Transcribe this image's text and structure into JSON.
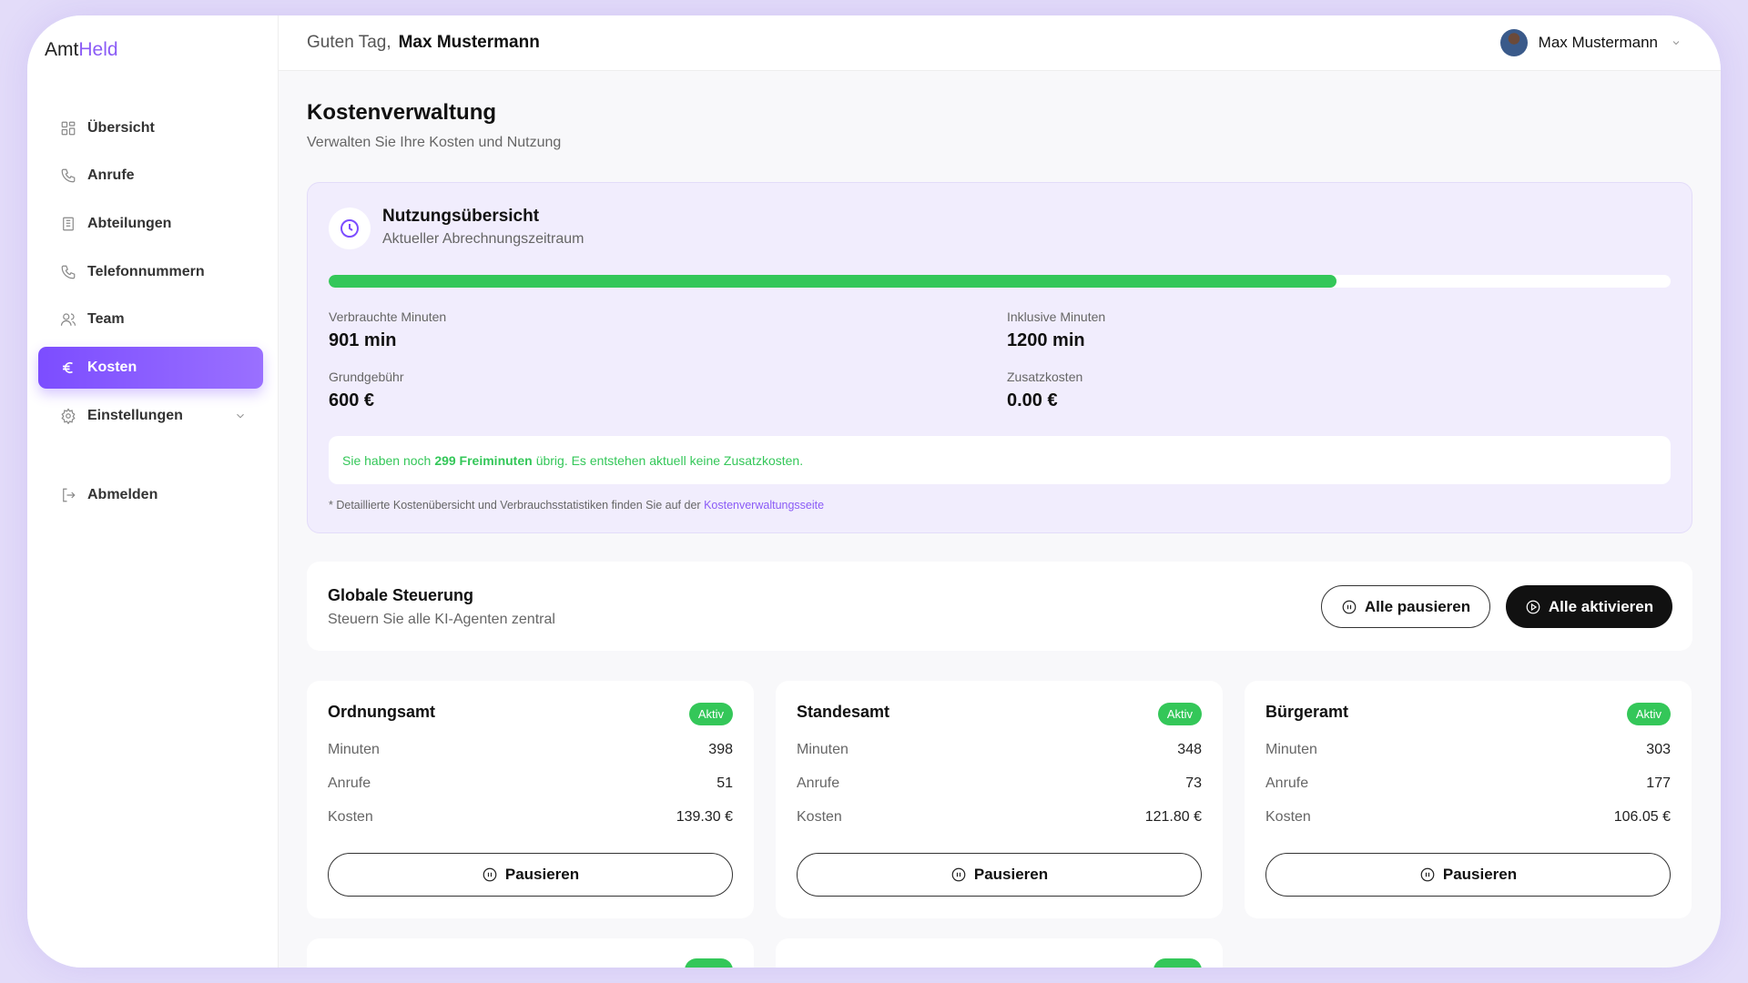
{
  "app": {
    "logo_part1": "Amt",
    "logo_part2": "Held",
    "accent": "#7c4dff",
    "success": "#34c759"
  },
  "sidebar": {
    "items": [
      {
        "label": "Übersicht",
        "icon": "grid-icon"
      },
      {
        "label": "Anrufe",
        "icon": "phone-icon"
      },
      {
        "label": "Abteilungen",
        "icon": "building-icon"
      },
      {
        "label": "Telefonnummern",
        "icon": "phone-icon"
      },
      {
        "label": "Team",
        "icon": "users-icon"
      },
      {
        "label": "Kosten",
        "icon": "euro-icon",
        "active": true
      },
      {
        "label": "Einstellungen",
        "icon": "gear-icon"
      },
      {
        "label": "Abmelden",
        "icon": "logout-icon"
      }
    ]
  },
  "header": {
    "greeting": "Guten Tag,",
    "name": "Max Mustermann",
    "user_name": "Max Mustermann"
  },
  "page": {
    "title": "Kostenverwaltung",
    "subtitle": "Verwalten Sie Ihre Kosten und Nutzung"
  },
  "usage": {
    "title": "Nutzungsübersicht",
    "subtitle": "Aktueller Abrechnungszeitraum",
    "progress": 0.751,
    "used_label": "Verbrauchte Minuten",
    "used_value": "901 min",
    "incl_label": "Inklusive Minuten",
    "incl_value": "1200 min",
    "fee_label": "Grundgebühr",
    "fee_value": "600 €",
    "extra_label": "Zusatzkosten",
    "extra_value": "0.00 €",
    "notice_pre": "Sie haben noch",
    "notice_bold": "299 Freiminuten",
    "notice_post": "übrig. Es entstehen aktuell keine Zusatzkosten.",
    "foot_text": "* Detaillierte Kostenübersicht und Verbrauchsstatistiken finden Sie auf der",
    "foot_link": "Kostenverwaltungsseite"
  },
  "global": {
    "title": "Globale Steuerung",
    "subtitle": "Steuern Sie alle KI-Agenten zentral",
    "pause_all": "Alle pausieren",
    "activate_all": "Alle aktivieren"
  },
  "departments": [
    {
      "name": "Ordnungsamt",
      "status": "Aktiv",
      "minutes_label": "Minuten",
      "minutes": "398",
      "calls_label": "Anrufe",
      "calls": "51",
      "cost_label": "Kosten",
      "cost": "139.30 €",
      "button": "Pausieren"
    },
    {
      "name": "Standesamt",
      "status": "Aktiv",
      "minutes_label": "Minuten",
      "minutes": "348",
      "calls_label": "Anrufe",
      "calls": "73",
      "cost_label": "Kosten",
      "cost": "121.80 €",
      "button": "Pausieren"
    },
    {
      "name": "Bürgeramt",
      "status": "Aktiv",
      "minutes_label": "Minuten",
      "minutes": "303",
      "calls_label": "Anrufe",
      "calls": "177",
      "cost_label": "Kosten",
      "cost": "106.05 €",
      "button": "Pausieren"
    }
  ]
}
